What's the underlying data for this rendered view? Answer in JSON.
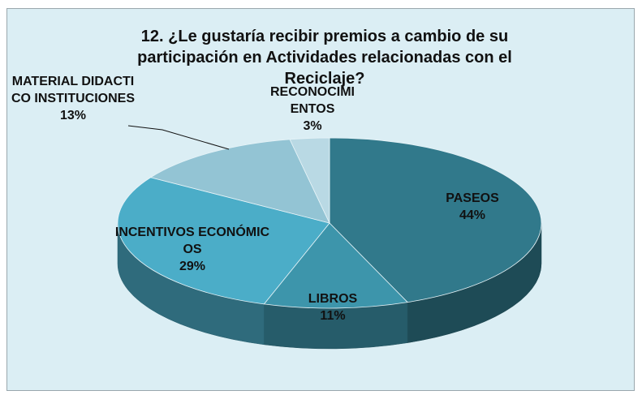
{
  "chart_data": {
    "type": "pie3d",
    "title": "12. ¿Le gustaría recibir premios a cambio de su participación en Actividades relacionadas con el Reciclaje?",
    "categories": [
      "PASEOS",
      "LIBROS",
      "INCENTIVOS ECONÓMICOS",
      "MATERIAL DIDACTICO INSTITUCIONES",
      "RECONOCIMIENTOS"
    ],
    "values": [
      44,
      11,
      29,
      13,
      3
    ],
    "value_labels": [
      "44%",
      "11%",
      "29%",
      "13%",
      "3%"
    ],
    "colors": [
      "#31798b",
      "#3d95ab",
      "#4badc8",
      "#93c4d4",
      "#b9d9e4"
    ]
  }
}
